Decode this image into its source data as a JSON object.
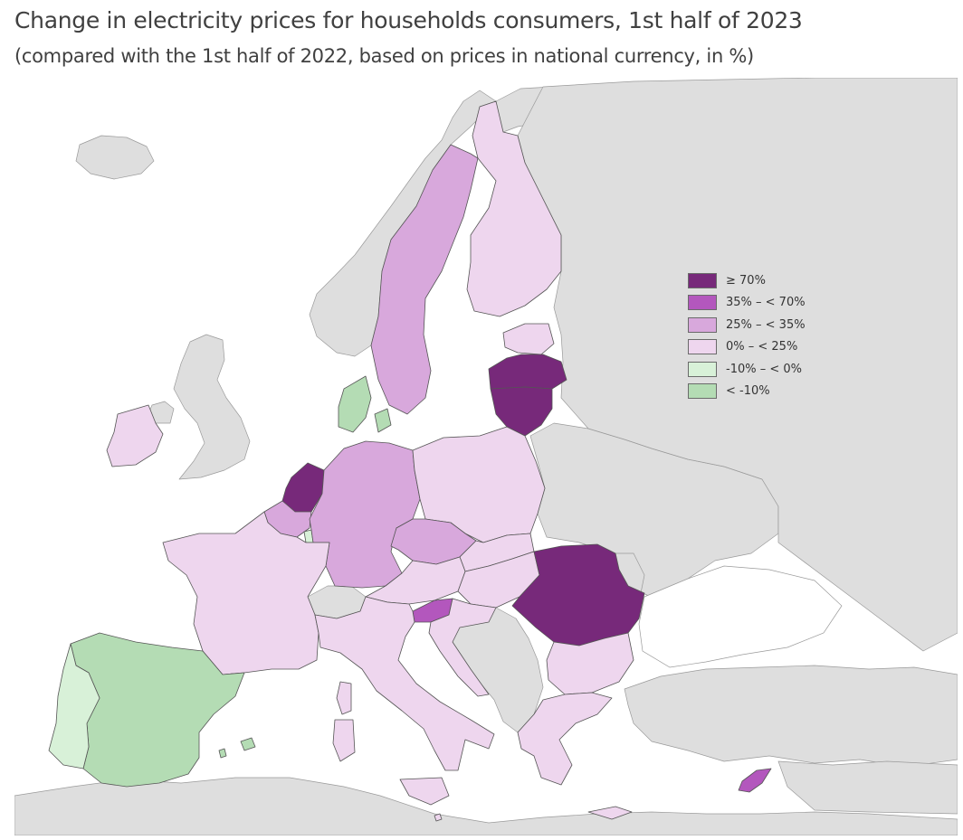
{
  "title": "Change in electricity prices for households consumers, 1st half of 2023",
  "subtitle": "(compared with the 1st half of 2022, based on prices in national currency, in %)",
  "colors": {
    "c1": "#77297a",
    "c2": "#b357bd",
    "c3": "#d8a8dc",
    "c4": "#eed6ee",
    "c5": "#d8f1d8",
    "c6": "#b4dcb4",
    "nonEU": "#dedede",
    "sea": "#ffffff"
  },
  "legend": {
    "items": [
      {
        "label": "≥ 70%",
        "color": "#77297a"
      },
      {
        "label": "35% – < 70%",
        "color": "#b357bd"
      },
      {
        "label": "25% – < 35%",
        "color": "#d8a8dc"
      },
      {
        "label": "0% – < 25%",
        "color": "#eed6ee"
      },
      {
        "label": "-10% – < 0%",
        "color": "#d8f1d8"
      },
      {
        "label": "< -10%",
        "color": "#b4dcb4"
      }
    ]
  },
  "countries": [
    {
      "name": "Latvia",
      "category": "≥ 70%"
    },
    {
      "name": "Lithuania",
      "category": "≥ 70%"
    },
    {
      "name": "Netherlands",
      "category": "≥ 70%"
    },
    {
      "name": "Romania",
      "category": "≥ 70%"
    },
    {
      "name": "Slovenia",
      "category": "35% – < 70%"
    },
    {
      "name": "Cyprus",
      "category": "35% – < 70%"
    },
    {
      "name": "Sweden",
      "category": "25% – < 35%"
    },
    {
      "name": "Germany",
      "category": "25% – < 35%"
    },
    {
      "name": "Czechia",
      "category": "25% – < 35%"
    },
    {
      "name": "Belgium",
      "category": "25% – < 35%"
    },
    {
      "name": "Finland",
      "category": "0% – < 25%"
    },
    {
      "name": "Estonia",
      "category": "0% – < 25%"
    },
    {
      "name": "Poland",
      "category": "0% – < 25%"
    },
    {
      "name": "Ireland",
      "category": "0% – < 25%"
    },
    {
      "name": "France",
      "category": "0% – < 25%"
    },
    {
      "name": "Austria",
      "category": "0% – < 25%"
    },
    {
      "name": "Slovakia",
      "category": "0% – < 25%"
    },
    {
      "name": "Hungary",
      "category": "0% – < 25%"
    },
    {
      "name": "Croatia",
      "category": "0% – < 25%"
    },
    {
      "name": "Italy",
      "category": "0% – < 25%"
    },
    {
      "name": "Bulgaria",
      "category": "0% – < 25%"
    },
    {
      "name": "Greece",
      "category": "0% – < 25%"
    },
    {
      "name": "Malta",
      "category": "0% – < 25%"
    },
    {
      "name": "Portugal",
      "category": "-10% – < 0%"
    },
    {
      "name": "Luxembourg",
      "category": "-10% – < 0%"
    },
    {
      "name": "Spain",
      "category": "< -10%"
    },
    {
      "name": "Denmark",
      "category": "< -10%"
    }
  ]
}
